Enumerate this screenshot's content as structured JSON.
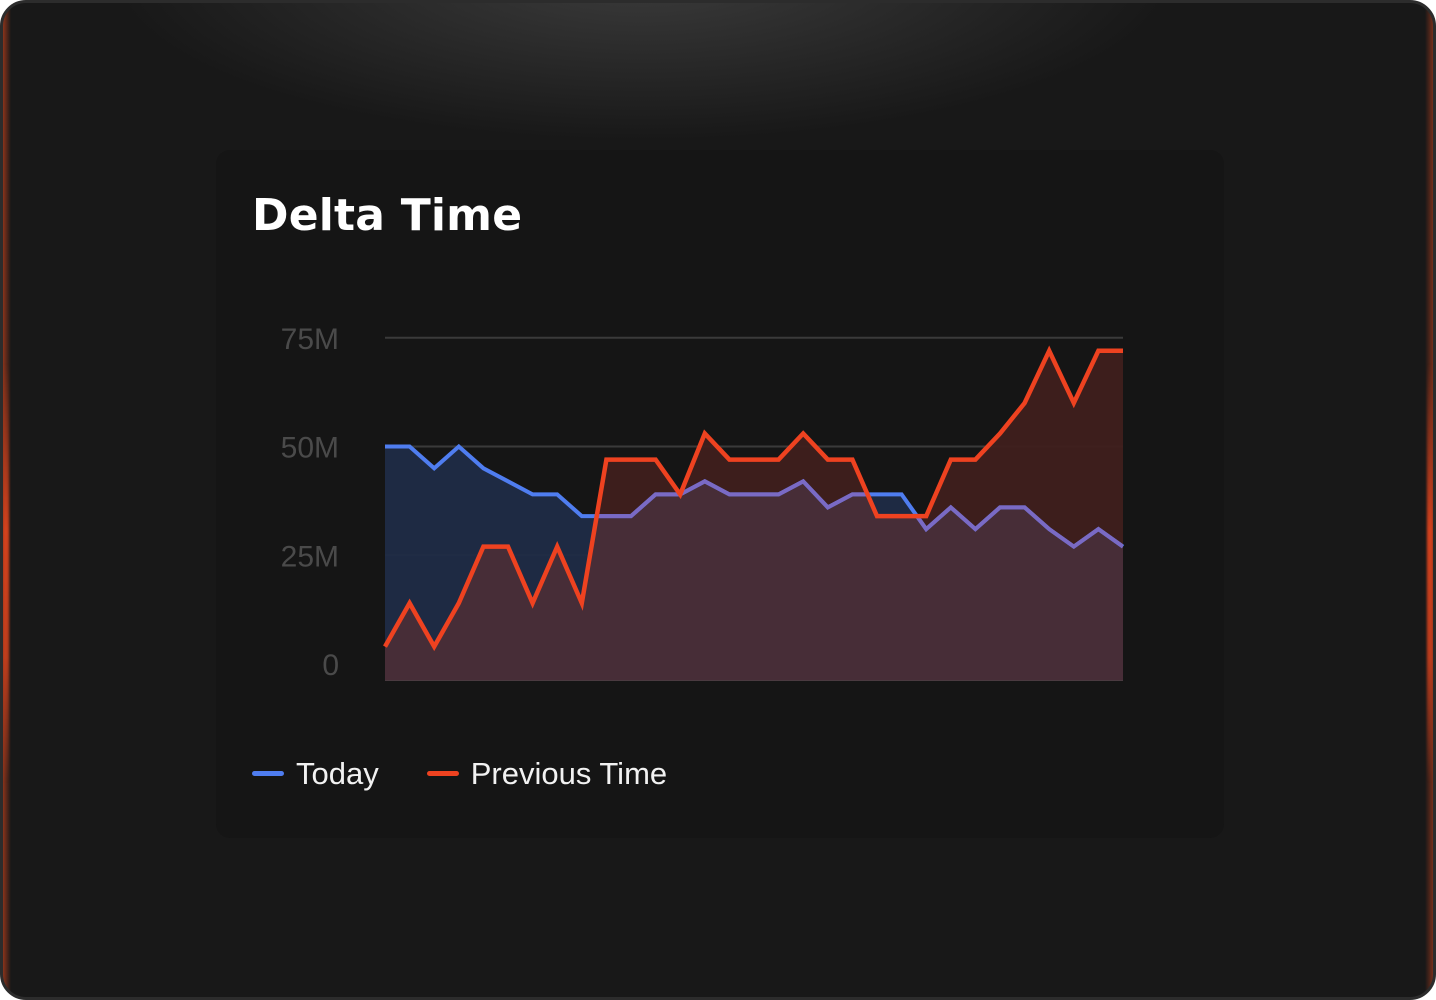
{
  "card": {
    "title": "Delta Time"
  },
  "legend": {
    "items": [
      {
        "label": "Today",
        "color": "#4f7df0"
      },
      {
        "label": "Previous Time",
        "color": "#ee4220"
      }
    ]
  },
  "colors": {
    "today_fill": "#1f2b46",
    "previous_fill": "#3f1f1c",
    "overlap_fill": "#472d37",
    "gridline": "#3a3a3a",
    "today_line_over": "#7a6ac4"
  },
  "chart_data": {
    "type": "area",
    "title": "Delta Time",
    "xlabel": "",
    "ylabel": "",
    "ylim": [
      0,
      75
    ],
    "y_unit": "M",
    "y_ticks": [
      0,
      25,
      50,
      75
    ],
    "y_tick_labels": [
      "0",
      "25M",
      "50M",
      "75M"
    ],
    "grid": true,
    "legend_position": "bottom-left",
    "x": [
      1,
      2,
      3,
      4,
      5,
      6,
      7,
      8,
      9,
      10,
      11,
      12,
      13,
      14,
      15,
      16,
      17,
      18,
      19,
      20,
      21,
      22,
      23,
      24,
      25,
      26,
      27,
      28,
      29,
      30,
      31
    ],
    "series": [
      {
        "name": "Today",
        "color": "#4f7df0",
        "values": [
          50,
          50,
          45,
          50,
          45,
          42,
          39,
          39,
          34,
          34,
          34,
          39,
          39,
          42,
          39,
          39,
          39,
          42,
          36,
          39,
          39,
          39,
          31,
          36,
          31,
          36,
          36,
          31,
          27,
          31,
          27
        ]
      },
      {
        "name": "Previous Time",
        "color": "#ee4220",
        "values": [
          4,
          14,
          4,
          14,
          27,
          27,
          14,
          27,
          14,
          47,
          47,
          47,
          39,
          53,
          47,
          47,
          47,
          53,
          47,
          47,
          34,
          34,
          34,
          47,
          47,
          53,
          60,
          72,
          60,
          72,
          72
        ]
      }
    ]
  }
}
